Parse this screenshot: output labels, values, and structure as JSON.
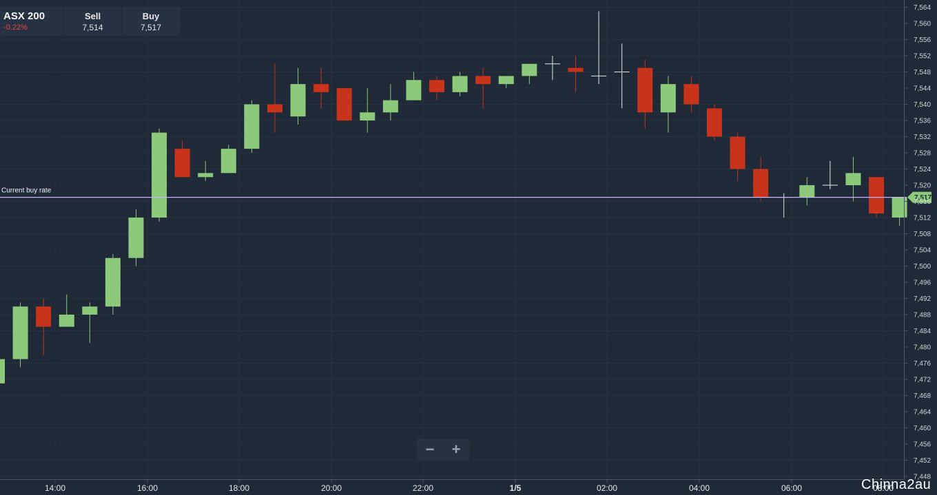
{
  "header": {
    "symbol": "ASX 200",
    "change": "-0.22%",
    "sell_label": "Sell",
    "sell_value": "7,514",
    "buy_label": "Buy",
    "buy_value": "7,517"
  },
  "current_rate": {
    "label": "Current buy rate",
    "value": 7517,
    "value_label": "7,517"
  },
  "zoom": {
    "minus": "−",
    "plus": "+"
  },
  "watermark": "Chinna2au",
  "colors": {
    "background": "#1f2937",
    "up": "#8cc97a",
    "down": "#c8331c",
    "rate_line": "#c4b5fd",
    "rate_badge": "#8cc97a"
  },
  "chart_data": {
    "type": "candlestick",
    "ylim": [
      7448,
      7564
    ],
    "y_ticks": [
      "7,448",
      "7,452",
      "7,456",
      "7,460",
      "7,464",
      "7,468",
      "7,472",
      "7,476",
      "7,480",
      "7,484",
      "7,488",
      "7,492",
      "7,496",
      "7,500",
      "7,504",
      "7,508",
      "7,512",
      "7,516",
      "7,520",
      "7,524",
      "7,528",
      "7,532",
      "7,536",
      "7,540",
      "7,544",
      "7,548",
      "7,552",
      "7,556",
      "7,560",
      "7,564"
    ],
    "x_ticks": [
      "14:00",
      "16:00",
      "18:00",
      "20:00",
      "22:00",
      "1/5",
      "02:00",
      "04:00",
      "06:00",
      "08:00"
    ],
    "grid": true,
    "candles": [
      {
        "o": 7471,
        "c": 7477,
        "h": 7478,
        "l": 7471
      },
      {
        "o": 7477,
        "c": 7490,
        "h": 7491,
        "l": 7475
      },
      {
        "o": 7490,
        "c": 7485,
        "h": 7492,
        "l": 7478
      },
      {
        "o": 7485,
        "c": 7488,
        "h": 7493,
        "l": 7485
      },
      {
        "o": 7488,
        "c": 7490,
        "h": 7491,
        "l": 7481
      },
      {
        "o": 7490,
        "c": 7502,
        "h": 7503,
        "l": 7488
      },
      {
        "o": 7502,
        "c": 7512,
        "h": 7514,
        "l": 7500
      },
      {
        "o": 7512,
        "c": 7533,
        "h": 7534,
        "l": 7511
      },
      {
        "o": 7529,
        "c": 7522,
        "h": 7531,
        "l": 7522
      },
      {
        "o": 7522,
        "c": 7523,
        "h": 7526,
        "l": 7521
      },
      {
        "o": 7523,
        "c": 7529,
        "h": 7530,
        "l": 7523
      },
      {
        "o": 7529,
        "c": 7540,
        "h": 7541,
        "l": 7528
      },
      {
        "o": 7540,
        "c": 7538,
        "h": 7550,
        "l": 7533
      },
      {
        "o": 7537,
        "c": 7545,
        "h": 7549,
        "l": 7535
      },
      {
        "o": 7545,
        "c": 7543,
        "h": 7549,
        "l": 7539
      },
      {
        "o": 7544,
        "c": 7536,
        "h": 7544,
        "l": 7536
      },
      {
        "o": 7536,
        "c": 7538,
        "h": 7544,
        "l": 7533
      },
      {
        "o": 7538,
        "c": 7541,
        "h": 7545,
        "l": 7536
      },
      {
        "o": 7541,
        "c": 7546,
        "h": 7548,
        "l": 7541
      },
      {
        "o": 7546,
        "c": 7543,
        "h": 7547,
        "l": 7541
      },
      {
        "o": 7543,
        "c": 7547,
        "h": 7548,
        "l": 7542
      },
      {
        "o": 7547,
        "c": 7545,
        "h": 7549,
        "l": 7539
      },
      {
        "o": 7545,
        "c": 7547,
        "h": 7547,
        "l": 7544
      },
      {
        "o": 7547,
        "c": 7550,
        "h": 7550,
        "l": 7545
      },
      {
        "o": 7550,
        "c": 7550,
        "h": 7552,
        "l": 7546
      },
      {
        "o": 7549,
        "c": 7548,
        "h": 7552,
        "l": 7543
      },
      {
        "o": 7547,
        "c": 7547,
        "h": 7563,
        "l": 7545
      },
      {
        "o": 7548,
        "c": 7548,
        "h": 7555,
        "l": 7539
      },
      {
        "o": 7549,
        "c": 7538,
        "h": 7551,
        "l": 7534
      },
      {
        "o": 7538,
        "c": 7545,
        "h": 7547,
        "l": 7533
      },
      {
        "o": 7545,
        "c": 7540,
        "h": 7547,
        "l": 7538
      },
      {
        "o": 7539,
        "c": 7532,
        "h": 7540,
        "l": 7531
      },
      {
        "o": 7532,
        "c": 7524,
        "h": 7533,
        "l": 7521
      },
      {
        "o": 7524,
        "c": 7517,
        "h": 7527,
        "l": 7516
      },
      {
        "o": 7517,
        "c": 7517,
        "h": 7518,
        "l": 7512
      },
      {
        "o": 7517,
        "c": 7520,
        "h": 7522,
        "l": 7515
      },
      {
        "o": 7520,
        "c": 7520,
        "h": 7526,
        "l": 7519
      },
      {
        "o": 7520,
        "c": 7523,
        "h": 7527,
        "l": 7516
      },
      {
        "o": 7522,
        "c": 7513,
        "h": 7522,
        "l": 7512
      },
      {
        "o": 7512,
        "c": 7517,
        "h": 7517,
        "l": 7510
      }
    ]
  }
}
